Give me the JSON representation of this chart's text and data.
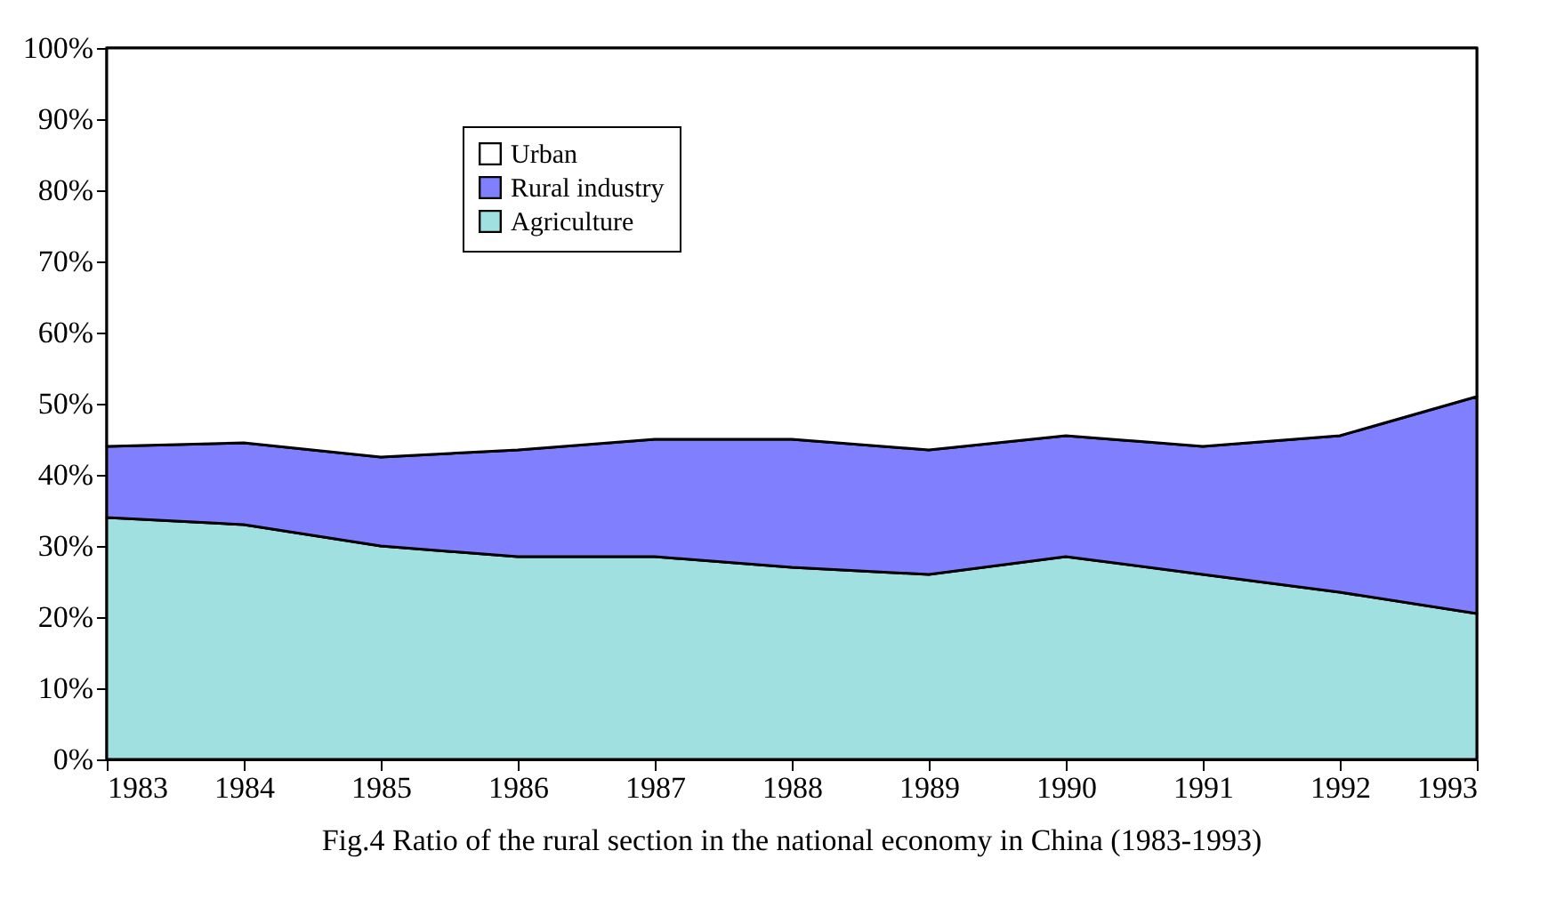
{
  "chart_data": {
    "type": "area",
    "stacked": true,
    "title": "Fig.4  Ratio of the rural section in the national economy in China (1983-1993)",
    "x": [
      1983,
      1984,
      1985,
      1986,
      1987,
      1988,
      1989,
      1990,
      1991,
      1992,
      1993
    ],
    "series": [
      {
        "name": "Agriculture",
        "color": "#a0e0e0",
        "values": [
          34,
          33,
          30,
          28.5,
          28.5,
          27,
          26,
          28.5,
          26,
          23.5,
          20.5
        ]
      },
      {
        "name": "Rural industry",
        "color": "#8080ff",
        "values": [
          10,
          11.5,
          12.5,
          15,
          16.5,
          18,
          17.5,
          17,
          18,
          22,
          30.5
        ]
      },
      {
        "name": "Urban",
        "color": "#ffffff",
        "values": [
          56,
          55.5,
          57.5,
          56.5,
          55,
          55,
          56.5,
          54.5,
          56,
          54.5,
          49
        ]
      }
    ],
    "xlim": [
      1983,
      1993
    ],
    "xticks": [
      1983,
      1984,
      1985,
      1986,
      1987,
      1988,
      1989,
      1990,
      1991,
      1992,
      1993
    ],
    "ylim": [
      0,
      100
    ],
    "yticks": [
      {
        "value": 0,
        "label": "0%"
      },
      {
        "value": 10,
        "label": "10%"
      },
      {
        "value": 20,
        "label": "20%"
      },
      {
        "value": 30,
        "label": "30%"
      },
      {
        "value": 40,
        "label": "40%"
      },
      {
        "value": 50,
        "label": "50%"
      },
      {
        "value": 60,
        "label": "60%"
      },
      {
        "value": 70,
        "label": "70%"
      },
      {
        "value": 80,
        "label": "80%"
      },
      {
        "value": 90,
        "label": "90%"
      },
      {
        "value": 100,
        "label": "100%"
      }
    ],
    "grid": false,
    "legend": "top left"
  }
}
